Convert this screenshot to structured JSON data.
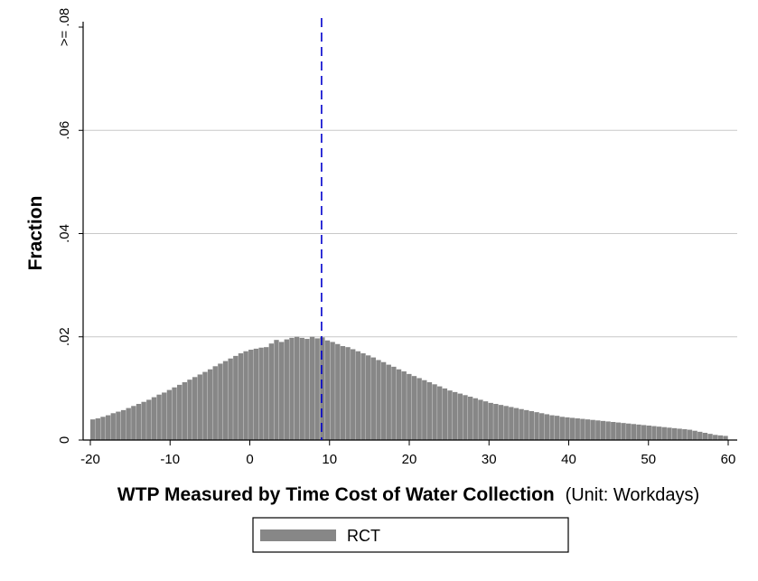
{
  "chart_data": {
    "type": "bar",
    "ylabel": "Fraction",
    "xlabel_bold": "WTP Measured by Time Cost of Water Collection",
    "xlabel_unit": "(Unit: Workdays)",
    "xlim": [
      -20,
      60
    ],
    "ylim": [
      0,
      0.08
    ],
    "x_ticks": [
      "-20",
      "-10",
      "0",
      "10",
      "20",
      "30",
      "40",
      "50",
      "60"
    ],
    "y_ticks": [
      {
        "value": 0,
        "label": "0"
      },
      {
        "value": 0.02,
        "label": ".02"
      },
      {
        "value": 0.04,
        "label": ".04"
      },
      {
        "value": 0.06,
        "label": ".06"
      },
      {
        "value": 0.08,
        "label": ">= .08"
      }
    ],
    "grid": true,
    "reference_line_x": 9,
    "bar_width": 1,
    "bar_color": "#878787",
    "reference_line_color": "#0000cc",
    "series": [
      {
        "name": "RCT",
        "x_start": -20,
        "values": [
          0.004,
          0.0042,
          0.0045,
          0.0048,
          0.0052,
          0.0055,
          0.0058,
          0.0062,
          0.0066,
          0.007,
          0.0074,
          0.0078,
          0.0083,
          0.0088,
          0.0092,
          0.0097,
          0.0102,
          0.0107,
          0.0112,
          0.0117,
          0.0122,
          0.0127,
          0.0132,
          0.0137,
          0.0143,
          0.0148,
          0.0153,
          0.0158,
          0.0163,
          0.0168,
          0.0172,
          0.0175,
          0.0177,
          0.0179,
          0.018,
          0.0187,
          0.0194,
          0.019,
          0.0195,
          0.0198,
          0.02,
          0.0198,
          0.0196,
          0.02,
          0.0197,
          0.0199,
          0.0193,
          0.019,
          0.0186,
          0.0182,
          0.018,
          0.0176,
          0.0172,
          0.0168,
          0.0164,
          0.016,
          0.0155,
          0.0151,
          0.0146,
          0.0142,
          0.0137,
          0.0133,
          0.0128,
          0.0124,
          0.012,
          0.0116,
          0.0112,
          0.0108,
          0.0104,
          0.01,
          0.0096,
          0.0093,
          0.009,
          0.0087,
          0.0084,
          0.0081,
          0.0078,
          0.0075,
          0.0072,
          0.007,
          0.0068,
          0.0066,
          0.0064,
          0.0062,
          0.006,
          0.0058,
          0.0056,
          0.0054,
          0.0052,
          0.005,
          0.0048,
          0.0047,
          0.0045,
          0.0044,
          0.0043,
          0.0042,
          0.0041,
          0.004,
          0.0039,
          0.0038,
          0.0037,
          0.0036,
          0.0035,
          0.0034,
          0.0033,
          0.0032,
          0.0031,
          0.003,
          0.0029,
          0.0028,
          0.0027,
          0.0026,
          0.0025,
          0.0024,
          0.0023,
          0.0022,
          0.0021,
          0.002,
          0.0018,
          0.0016,
          0.0014,
          0.0012,
          0.001,
          0.0009,
          0.0008
        ]
      }
    ]
  },
  "legend": {
    "label": "RCT"
  }
}
